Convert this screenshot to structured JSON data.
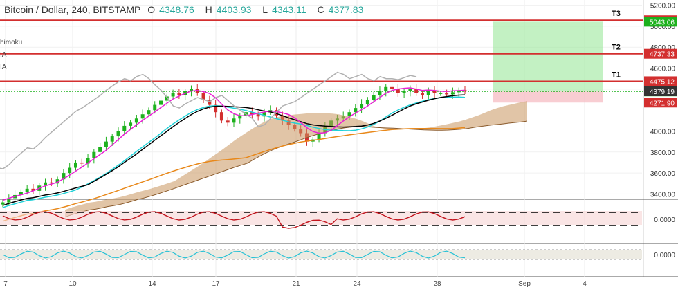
{
  "header": {
    "symbol": "Bitcoin / Dollar, 240, BITSTAMP",
    "open": "4348.76",
    "high": "4403.93",
    "low": "4343.11",
    "close": "4377.83",
    "open_prefix": "O",
    "high_prefix": "H",
    "low_prefix": "L",
    "close_prefix": "C"
  },
  "indicators": [
    "himoku",
    "IA",
    "IA"
  ],
  "targets": [
    {
      "label": "T1",
      "value": "4475.12"
    },
    {
      "label": "T2",
      "value": "4737.33"
    },
    {
      "label": "T3",
      "value": "5057.22"
    }
  ],
  "price_tags": [
    {
      "value": "5043.06",
      "color": "#1db11d"
    },
    {
      "value": "4377.83",
      "color": "#1db11d"
    },
    {
      "value": "4379.19",
      "color": "#333333"
    },
    {
      "value": "4271.90",
      "color": "#d32f2f"
    }
  ],
  "colors": {
    "target_line": "#d32f2f",
    "bull": "#1db11d",
    "bear": "#d32f2f",
    "tenkan": "#e91ed4",
    "kijun": "#000000",
    "ma_cyan": "#1fd1d8",
    "ma_orange": "#e8881a",
    "chikou": "#b0b0b0",
    "cloud_bull": "#c9955e",
    "cloud_bear": "#f3b6b6",
    "long_target_zone": "#9be89b",
    "long_stop_zone": "#f5b8bf"
  },
  "chart_data": {
    "type": "candlestick",
    "x_tick_labels": [
      "7",
      "10",
      "14",
      "17",
      "21",
      "24",
      "28",
      "Sep",
      "4"
    ],
    "y_axis_labels": [
      "5200.00",
      "5000.00",
      "4800.00",
      "4600.00",
      "4400.00",
      "4000.00",
      "3800.00",
      "3600.00",
      "3400.00"
    ],
    "ylim": [
      3350,
      5250
    ],
    "osc1_axis_label": "0.0000",
    "osc2_axis_label": "0.0000",
    "close_series": [
      3320,
      3360,
      3390,
      3420,
      3450,
      3430,
      3480,
      3510,
      3500,
      3540,
      3600,
      3650,
      3700,
      3690,
      3740,
      3800,
      3850,
      3900,
      3950,
      4000,
      4050,
      4080,
      4120,
      4160,
      4200,
      4250,
      4290,
      4330,
      4360,
      4340,
      4380,
      4400,
      4360,
      4300,
      4250,
      4180,
      4100,
      4080,
      4120,
      4150,
      4180,
      4160,
      4140,
      4180,
      4200,
      4150,
      4100,
      4060,
      4020,
      3980,
      3900,
      3920,
      3980,
      4040,
      4100,
      4120,
      4140,
      4180,
      4220,
      4260,
      4300,
      4340,
      4380,
      4420,
      4400,
      4360,
      4380,
      4400,
      4360,
      4340,
      4380,
      4360,
      4360,
      4350,
      4370,
      4390,
      4378
    ],
    "long_position": {
      "entry": 4377.83,
      "target": 5043.06,
      "stop": 4271.9
    }
  }
}
